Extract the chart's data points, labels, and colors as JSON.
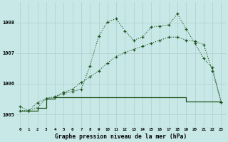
{
  "title": "Graphe pression niveau de la mer (hPa)",
  "background_color": "#c8e8e8",
  "grid_color": "#b0cccc",
  "line_color": "#1a5218",
  "x_labels": [
    "0",
    "1",
    "2",
    "3",
    "4",
    "5",
    "6",
    "7",
    "8",
    "9",
    "10",
    "11",
    "12",
    "13",
    "14",
    "15",
    "16",
    "17",
    "18",
    "19",
    "20",
    "21",
    "22",
    "23"
  ],
  "ylim": [
    1004.6,
    1008.65
  ],
  "yticks": [
    1005,
    1006,
    1007,
    1008
  ],
  "series1_x": [
    0,
    1,
    2,
    3,
    4,
    5,
    6,
    7,
    8,
    9,
    10,
    11,
    12,
    13,
    14,
    15,
    16,
    17,
    18,
    19,
    20,
    21,
    22,
    23
  ],
  "series1_y": [
    1005.25,
    1005.12,
    1005.38,
    1005.52,
    1005.55,
    1005.68,
    1005.75,
    1005.82,
    1006.58,
    1007.55,
    1008.02,
    1008.12,
    1007.72,
    1007.42,
    1007.52,
    1007.85,
    1007.88,
    1007.92,
    1008.28,
    1007.78,
    1007.32,
    1006.82,
    1006.52,
    1005.4
  ],
  "series2_x": [
    0,
    1,
    2,
    3,
    4,
    5,
    6,
    7,
    8,
    9,
    10,
    11,
    12,
    13,
    14,
    15,
    16,
    17,
    18,
    19,
    20,
    21,
    22,
    23
  ],
  "series2_y": [
    1005.12,
    1005.12,
    1005.22,
    1005.52,
    1005.58,
    1005.72,
    1005.82,
    1006.05,
    1006.22,
    1006.42,
    1006.68,
    1006.88,
    1007.02,
    1007.12,
    1007.22,
    1007.32,
    1007.42,
    1007.52,
    1007.52,
    1007.42,
    1007.38,
    1007.28,
    1006.42,
    1005.4
  ],
  "series3_x": [
    0,
    1,
    2,
    3,
    4,
    5,
    6,
    7,
    8,
    9,
    10,
    11,
    12,
    13,
    14,
    15,
    16,
    17,
    18,
    19,
    20,
    21,
    22,
    23
  ],
  "series3_y": [
    1005.12,
    1005.12,
    1005.22,
    1005.52,
    1005.55,
    1005.55,
    1005.55,
    1005.55,
    1005.55,
    1005.55,
    1005.55,
    1005.55,
    1005.55,
    1005.55,
    1005.55,
    1005.55,
    1005.55,
    1005.55,
    1005.55,
    1005.42,
    1005.42,
    1005.42,
    1005.42,
    1005.4
  ]
}
